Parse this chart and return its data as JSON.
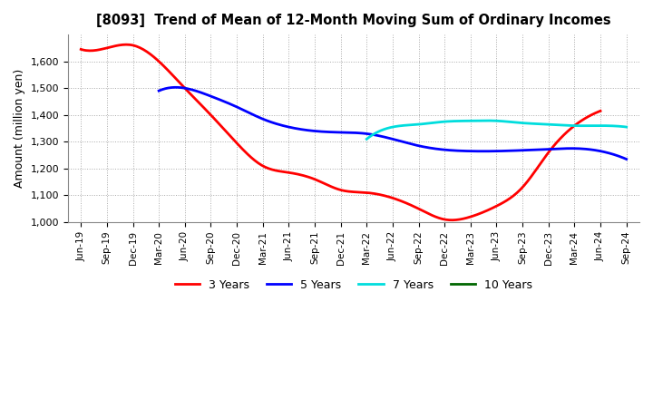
{
  "title": "[8093]  Trend of Mean of 12-Month Moving Sum of Ordinary Incomes",
  "ylabel": "Amount (million yen)",
  "ylim": [
    1000,
    1700
  ],
  "yticks": [
    1000,
    1100,
    1200,
    1300,
    1400,
    1500,
    1600
  ],
  "background_color": "#ffffff",
  "grid_color": "#aaaaaa",
  "x_labels": [
    "Jun-19",
    "Sep-19",
    "Dec-19",
    "Mar-20",
    "Jun-20",
    "Sep-20",
    "Dec-20",
    "Mar-21",
    "Jun-21",
    "Sep-21",
    "Dec-21",
    "Mar-22",
    "Jun-22",
    "Sep-22",
    "Dec-22",
    "Mar-23",
    "Jun-23",
    "Sep-23",
    "Dec-23",
    "Mar-24",
    "Jun-24",
    "Sep-24"
  ],
  "series": {
    "3 Years": {
      "color": "#ff0000",
      "data_x": [
        0,
        1,
        2,
        3,
        4,
        5,
        6,
        7,
        8,
        9,
        10,
        11,
        12,
        13,
        14,
        15,
        16,
        17,
        18,
        19,
        20
      ],
      "data_y": [
        1645,
        1650,
        1660,
        1600,
        1500,
        1400,
        1295,
        1210,
        1185,
        1160,
        1120,
        1110,
        1090,
        1050,
        1010,
        1020,
        1060,
        1130,
        1260,
        1360,
        1415
      ]
    },
    "5 Years": {
      "color": "#0000ff",
      "data_x": [
        3,
        4,
        5,
        6,
        7,
        8,
        9,
        10,
        11,
        12,
        13,
        14,
        15,
        16,
        17,
        18,
        19,
        20,
        21
      ],
      "data_y": [
        1490,
        1500,
        1470,
        1430,
        1385,
        1355,
        1340,
        1335,
        1330,
        1310,
        1285,
        1270,
        1265,
        1265,
        1268,
        1272,
        1275,
        1265,
        1235
      ]
    },
    "7 Years": {
      "color": "#00dddd",
      "data_x": [
        11,
        12,
        13,
        14,
        15,
        16,
        17,
        18,
        19,
        20,
        21
      ],
      "data_y": [
        1310,
        1355,
        1365,
        1375,
        1378,
        1378,
        1370,
        1365,
        1360,
        1360,
        1355
      ]
    },
    "10 Years": {
      "color": "#006600",
      "data_x": [],
      "data_y": []
    }
  },
  "legend_labels": [
    "3 Years",
    "5 Years",
    "7 Years",
    "10 Years"
  ],
  "legend_colors": [
    "#ff0000",
    "#0000ff",
    "#00dddd",
    "#006600"
  ]
}
